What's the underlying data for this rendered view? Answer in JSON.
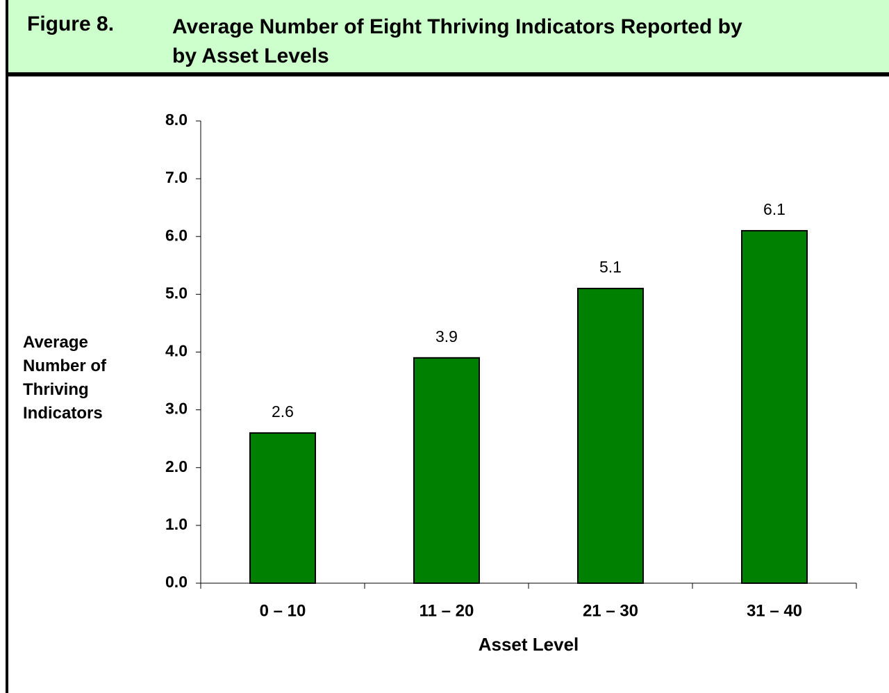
{
  "header": {
    "figure": "Figure 8.",
    "title_lines": [
      "Average Number of Eight Thriving Indicators Reported by",
      "by Asset Levels"
    ]
  },
  "chart_data": {
    "type": "bar",
    "categories": [
      "0 – 10",
      "11 – 20",
      "21 – 30",
      "31 – 40"
    ],
    "values": [
      2.6,
      3.9,
      5.1,
      6.1
    ],
    "color": "#008000",
    "xlabel": "Asset Level",
    "ylabel": "Average Number of Thriving Indicators",
    "ylim": [
      0,
      8
    ],
    "yticks": [
      {
        "value": 0,
        "label": "0.0"
      },
      {
        "value": 1,
        "label": "1.0"
      },
      {
        "value": 2,
        "label": "2.0"
      },
      {
        "value": 3,
        "label": "3.0"
      },
      {
        "value": 4,
        "label": "4.0"
      },
      {
        "value": 5,
        "label": "5.0"
      },
      {
        "value": 6,
        "label": "6.0"
      },
      {
        "value": 7,
        "label": "7.0"
      },
      {
        "value": 8,
        "label": "8.0"
      }
    ],
    "grid": false
  }
}
